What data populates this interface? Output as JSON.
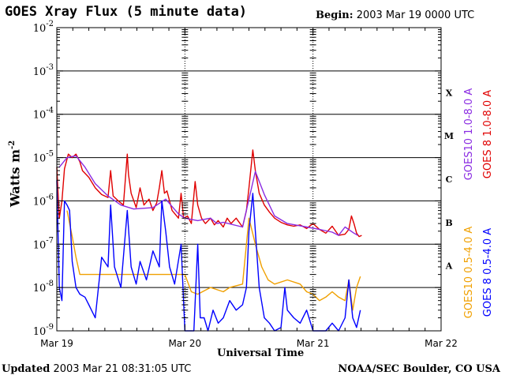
{
  "header": {
    "title": "GOES Xray Flux (5 minute data)",
    "begin_label": "Begin:",
    "begin_value": "2003 Mar 19 0000 UTC"
  },
  "footer": {
    "updated_label": "Updated",
    "updated_value": "2003 Mar 21 08:31:05 UTC",
    "credit": "NOAA/SEC Boulder, CO USA"
  },
  "chart_data": {
    "type": "line",
    "title": "GOES Xray Flux (5 minute data)",
    "xlabel": "Universal Time",
    "ylabel": "Watts m",
    "ylabel_superscript": "-2",
    "y_scale": "log",
    "ylim": [
      1e-09,
      0.01
    ],
    "xlim": [
      "2003-03-19 00:00",
      "2003-03-22 00:00"
    ],
    "x_ticks": [
      "Mar 19",
      "Mar 20",
      "Mar 21",
      "Mar 22"
    ],
    "y_ticks": [
      {
        "base": "10",
        "exp": "-9",
        "value": 1e-09
      },
      {
        "base": "10",
        "exp": "-8",
        "value": 1e-08
      },
      {
        "base": "10",
        "exp": "-7",
        "value": 1e-07
      },
      {
        "base": "10",
        "exp": "-6",
        "value": 1e-06
      },
      {
        "base": "10",
        "exp": "-5",
        "value": 1e-05
      },
      {
        "base": "10",
        "exp": "-4",
        "value": 0.0001
      },
      {
        "base": "10",
        "exp": "-3",
        "value": 0.001
      },
      {
        "base": "10",
        "exp": "-2",
        "value": 0.01
      }
    ],
    "flare_classes": [
      {
        "label": "A",
        "value": 1e-08
      },
      {
        "label": "B",
        "value": 1e-07
      },
      {
        "label": "C",
        "value": 1e-06
      },
      {
        "label": "M",
        "value": 1e-05
      },
      {
        "label": "X",
        "value": 0.0001
      }
    ],
    "grid": "horizontal lines at each decade; dashed vertical at day boundaries",
    "legend_position": "right, vertical",
    "series": [
      {
        "name": "GOES10 1.0-8.0 A",
        "color": "#8a2be2",
        "points": [
          [
            0.02,
            6e-06
          ],
          [
            0.08,
            1e-05
          ],
          [
            0.15,
            1.1e-05
          ],
          [
            0.22,
            6e-06
          ],
          [
            0.3,
            2.5e-06
          ],
          [
            0.4,
            1.3e-06
          ],
          [
            0.5,
            8e-07
          ],
          [
            0.6,
            6.5e-07
          ],
          [
            0.75,
            7e-07
          ],
          [
            0.85,
            1.1e-06
          ],
          [
            0.95,
            5e-07
          ],
          [
            1.0,
            4e-07
          ],
          [
            1.1,
            3.5e-07
          ],
          [
            1.2,
            4e-07
          ],
          [
            1.25,
            3e-07
          ],
          [
            1.3,
            3.2e-07
          ],
          [
            1.45,
            2.5e-07
          ],
          [
            1.55,
            4.8e-06
          ],
          [
            1.62,
            1.4e-06
          ],
          [
            1.7,
            4.5e-07
          ],
          [
            1.8,
            3e-07
          ],
          [
            1.95,
            2.5e-07
          ],
          [
            2.05,
            2.2e-07
          ],
          [
            2.15,
            1.9e-07
          ],
          [
            2.2,
            1.6e-07
          ],
          [
            2.25,
            2.5e-07
          ],
          [
            2.32,
            1.8e-07
          ],
          [
            2.35,
            1.6e-07
          ]
        ]
      },
      {
        "name": "GOES 8 1.0-8.0 A",
        "color": "#e00000",
        "points": [
          [
            0.0,
            6e-06
          ],
          [
            0.02,
            4e-07
          ],
          [
            0.04,
            1e-06
          ],
          [
            0.06,
            5.5e-06
          ],
          [
            0.09,
            1.2e-05
          ],
          [
            0.12,
            1e-05
          ],
          [
            0.15,
            1.2e-05
          ],
          [
            0.18,
            8e-06
          ],
          [
            0.2,
            5e-06
          ],
          [
            0.25,
            3.5e-06
          ],
          [
            0.3,
            2e-06
          ],
          [
            0.35,
            1.4e-06
          ],
          [
            0.4,
            1.2e-06
          ],
          [
            0.42,
            5e-06
          ],
          [
            0.44,
            1.3e-06
          ],
          [
            0.48,
            1e-06
          ],
          [
            0.52,
            8e-07
          ],
          [
            0.55,
            1.2e-05
          ],
          [
            0.56,
            4e-06
          ],
          [
            0.58,
            1.5e-06
          ],
          [
            0.62,
            7e-07
          ],
          [
            0.65,
            2e-06
          ],
          [
            0.68,
            8e-07
          ],
          [
            0.72,
            1.1e-06
          ],
          [
            0.75,
            6e-07
          ],
          [
            0.78,
            9e-07
          ],
          [
            0.8,
            2e-06
          ],
          [
            0.82,
            5e-06
          ],
          [
            0.84,
            1.5e-06
          ],
          [
            0.86,
            1.7e-06
          ],
          [
            0.88,
            1e-06
          ],
          [
            0.9,
            6e-07
          ],
          [
            0.95,
            4e-07
          ],
          [
            0.97,
            1.5e-06
          ],
          [
            0.99,
            4e-07
          ],
          [
            1.02,
            4.5e-07
          ],
          [
            1.05,
            3e-07
          ],
          [
            1.08,
            2.8e-06
          ],
          [
            1.1,
            8e-07
          ],
          [
            1.13,
            4e-07
          ],
          [
            1.16,
            3e-07
          ],
          [
            1.2,
            4e-07
          ],
          [
            1.23,
            2.8e-07
          ],
          [
            1.26,
            3.5e-07
          ],
          [
            1.3,
            2.5e-07
          ],
          [
            1.33,
            4e-07
          ],
          [
            1.36,
            3e-07
          ],
          [
            1.4,
            4e-07
          ],
          [
            1.45,
            2.5e-07
          ],
          [
            1.48,
            6e-07
          ],
          [
            1.5,
            2e-06
          ],
          [
            1.53,
            1.5e-05
          ],
          [
            1.55,
            5e-06
          ],
          [
            1.58,
            1.5e-06
          ],
          [
            1.62,
            8e-07
          ],
          [
            1.66,
            5.5e-07
          ],
          [
            1.7,
            4e-07
          ],
          [
            1.75,
            3.2e-07
          ],
          [
            1.8,
            2.8e-07
          ],
          [
            1.85,
            2.6e-07
          ],
          [
            1.9,
            2.8e-07
          ],
          [
            1.95,
            2.3e-07
          ],
          [
            2.0,
            3e-07
          ],
          [
            2.05,
            2.2e-07
          ],
          [
            2.1,
            1.8e-07
          ],
          [
            2.15,
            2.6e-07
          ],
          [
            2.2,
            1.6e-07
          ],
          [
            2.25,
            1.7e-07
          ],
          [
            2.28,
            2.2e-07
          ],
          [
            2.3,
            4.5e-07
          ],
          [
            2.32,
            3e-07
          ],
          [
            2.34,
            1.8e-07
          ],
          [
            2.36,
            1.5e-07
          ],
          [
            2.38,
            1.6e-07
          ]
        ]
      },
      {
        "name": "GOES10 0.5-4.0 A",
        "color": "#f0a000",
        "points": [
          [
            0.08,
            6e-07
          ],
          [
            0.12,
            1.5e-07
          ],
          [
            0.15,
            5e-08
          ],
          [
            0.18,
            2e-08
          ],
          [
            1.0,
            2e-08
          ],
          [
            1.05,
            8e-09
          ],
          [
            1.1,
            7e-09
          ],
          [
            1.2,
            1e-08
          ],
          [
            1.3,
            8e-09
          ],
          [
            1.35,
            1e-08
          ],
          [
            1.45,
            1.2e-08
          ],
          [
            1.5,
            4e-07
          ],
          [
            1.55,
            1e-07
          ],
          [
            1.6,
            3e-08
          ],
          [
            1.65,
            1.5e-08
          ],
          [
            1.7,
            1.2e-08
          ],
          [
            1.8,
            1.5e-08
          ],
          [
            1.9,
            1.2e-08
          ],
          [
            1.95,
            8e-09
          ],
          [
            2.0,
            7e-09
          ],
          [
            2.05,
            5e-09
          ],
          [
            2.1,
            6e-09
          ],
          [
            2.15,
            8e-09
          ],
          [
            2.2,
            6e-09
          ],
          [
            2.25,
            5e-09
          ],
          [
            2.28,
            1.5e-08
          ],
          [
            2.31,
            3e-09
          ],
          [
            2.34,
            1e-08
          ],
          [
            2.37,
            1.8e-08
          ]
        ]
      },
      {
        "name": "GOES 8 0.5-4.0 A",
        "color": "#0000ff",
        "points": [
          [
            0.0,
            3e-06
          ],
          [
            0.02,
            1e-08
          ],
          [
            0.04,
            5e-09
          ],
          [
            0.06,
            1e-06
          ],
          [
            0.08,
            8e-07
          ],
          [
            0.1,
            6e-07
          ],
          [
            0.12,
            4e-08
          ],
          [
            0.15,
            1e-08
          ],
          [
            0.18,
            7e-09
          ],
          [
            0.22,
            6e-09
          ],
          [
            0.25,
            4e-09
          ],
          [
            0.3,
            2e-09
          ],
          [
            0.35,
            5e-08
          ],
          [
            0.4,
            3e-08
          ],
          [
            0.42,
            8e-07
          ],
          [
            0.45,
            3e-08
          ],
          [
            0.5,
            1e-08
          ],
          [
            0.55,
            6e-07
          ],
          [
            0.58,
            3e-08
          ],
          [
            0.62,
            1.2e-08
          ],
          [
            0.65,
            4e-08
          ],
          [
            0.7,
            1.5e-08
          ],
          [
            0.75,
            7e-08
          ],
          [
            0.8,
            3e-08
          ],
          [
            0.82,
            1e-06
          ],
          [
            0.85,
            2e-07
          ],
          [
            0.88,
            3e-08
          ],
          [
            0.92,
            1.2e-08
          ],
          [
            0.97,
            1e-07
          ],
          [
            1.0,
            1e-09
          ],
          [
            1.03,
            1e-09
          ],
          [
            1.07,
            1e-09
          ],
          [
            1.1,
            1e-07
          ],
          [
            1.12,
            2e-09
          ],
          [
            1.15,
            2e-09
          ],
          [
            1.18,
            1e-09
          ],
          [
            1.22,
            3e-09
          ],
          [
            1.26,
            1.5e-09
          ],
          [
            1.3,
            2e-09
          ],
          [
            1.35,
            5e-09
          ],
          [
            1.4,
            3e-09
          ],
          [
            1.45,
            4e-09
          ],
          [
            1.48,
            1e-08
          ],
          [
            1.5,
            2e-07
          ],
          [
            1.53,
            1.5e-06
          ],
          [
            1.55,
            2e-07
          ],
          [
            1.58,
            1e-08
          ],
          [
            1.62,
            2e-09
          ],
          [
            1.66,
            1.5e-09
          ],
          [
            1.7,
            1e-09
          ],
          [
            1.75,
            1.2e-09
          ],
          [
            1.78,
            1e-08
          ],
          [
            1.8,
            3e-09
          ],
          [
            1.85,
            2e-09
          ],
          [
            1.9,
            1.5e-09
          ],
          [
            1.95,
            3e-09
          ],
          [
            2.0,
            1e-09
          ],
          [
            2.05,
            1e-09
          ],
          [
            2.1,
            1e-09
          ],
          [
            2.15,
            1.5e-09
          ],
          [
            2.2,
            1e-09
          ],
          [
            2.25,
            2e-09
          ],
          [
            2.28,
            1.5e-08
          ],
          [
            2.31,
            2e-09
          ],
          [
            2.34,
            1.2e-09
          ],
          [
            2.37,
            3e-09
          ]
        ]
      }
    ]
  }
}
